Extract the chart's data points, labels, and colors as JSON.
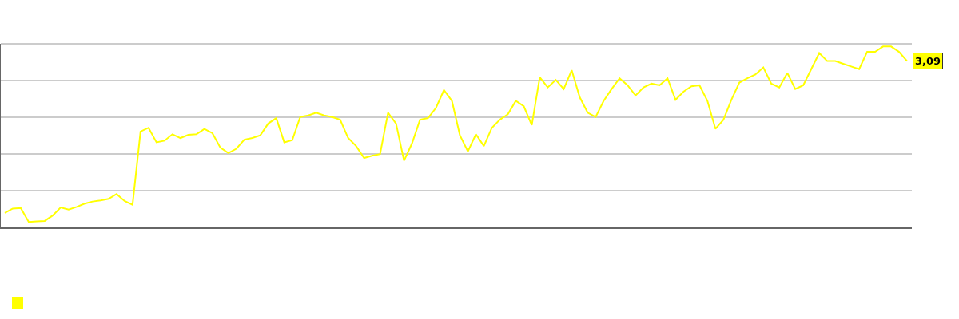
{
  "chart_data": {
    "type": "line",
    "categories": [
      null,
      null,
      null,
      null,
      null,
      null,
      null,
      null,
      null,
      null,
      null,
      null,
      null,
      null,
      null,
      null,
      null,
      null,
      null,
      null,
      null,
      null,
      null,
      null,
      null,
      null,
      null,
      null,
      null,
      null,
      null,
      null,
      null,
      null,
      null,
      null,
      null,
      null,
      null,
      null,
      null,
      null,
      null,
      null,
      null,
      null,
      null,
      null,
      null,
      null,
      null,
      null,
      null,
      null,
      null,
      null,
      null,
      null,
      null,
      null,
      null,
      null,
      null,
      null,
      null,
      null,
      null,
      null,
      null,
      null,
      null,
      null,
      null,
      null,
      null,
      null,
      null,
      null,
      null,
      null,
      null,
      null,
      null,
      null,
      null,
      null,
      null,
      null,
      null,
      null,
      null,
      null,
      null,
      null,
      null,
      null,
      null,
      null,
      null,
      null,
      null,
      null,
      null,
      null,
      null,
      null,
      null,
      null,
      null,
      null,
      null,
      null,
      null,
      null
    ],
    "series": [
      {
        "color": "#ffff00",
        "values": [
          0.27,
          0.35,
          0.36,
          0.1,
          0.11,
          0.12,
          0.22,
          0.37,
          0.33,
          0.38,
          0.44,
          0.48,
          0.5,
          0.53,
          0.62,
          0.49,
          0.42,
          1.78,
          1.85,
          1.58,
          1.61,
          1.73,
          1.66,
          1.72,
          1.73,
          1.83,
          1.75,
          1.48,
          1.38,
          1.46,
          1.63,
          1.66,
          1.71,
          1.93,
          2.03,
          1.58,
          1.62,
          2.05,
          2.08,
          2.13,
          2.08,
          2.05,
          2.0,
          1.66,
          1.51,
          1.29,
          1.33,
          1.36,
          2.13,
          1.93,
          1.24,
          1.56,
          2.0,
          2.03,
          2.22,
          2.55,
          2.35,
          1.71,
          1.41,
          1.73,
          1.51,
          1.85,
          2.0,
          2.1,
          2.35,
          2.25,
          1.9,
          2.79,
          2.6,
          2.74,
          2.57,
          2.92,
          2.42,
          2.13,
          2.05,
          2.35,
          2.57,
          2.77,
          2.64,
          2.45,
          2.6,
          2.67,
          2.64,
          2.77,
          2.37,
          2.52,
          2.62,
          2.64,
          2.35,
          1.83,
          2.0,
          2.37,
          2.69,
          2.77,
          2.84,
          2.97,
          2.67,
          2.6,
          2.87,
          2.57,
          2.64,
          2.94,
          3.24,
          3.09,
          3.09,
          3.04,
          2.99,
          2.94,
          3.26,
          3.26,
          3.36,
          3.36,
          3.26,
          3.09
        ],
        "value_labels": [
          null,
          null,
          null,
          null,
          null,
          null,
          null,
          null,
          null,
          null,
          null,
          null,
          null,
          null,
          null,
          null,
          null,
          null,
          null,
          null,
          null,
          null,
          null,
          null,
          null,
          null,
          null,
          null,
          null,
          null,
          null,
          null,
          null,
          null,
          null,
          null,
          null,
          null,
          null,
          null,
          null,
          null,
          null,
          null,
          null,
          null,
          null,
          null,
          null,
          null,
          null,
          null,
          null,
          null,
          null,
          null,
          null,
          null,
          null,
          null,
          null,
          null,
          null,
          null,
          null,
          null,
          null,
          null,
          null,
          null,
          null,
          null,
          null,
          null,
          null,
          null,
          null,
          null,
          null,
          null,
          null,
          null,
          null,
          null,
          null,
          null,
          null,
          null,
          null,
          null,
          null,
          null,
          null,
          null,
          null,
          null,
          null,
          null,
          null,
          null,
          null,
          null,
          null,
          null,
          null,
          null,
          null,
          null,
          null,
          null,
          null,
          null,
          null,
          "3,09"
        ]
      }
    ],
    "ylim": [
      0,
      3.41
    ],
    "yticks": [
      {
        "value": 0,
        "label": null
      },
      {
        "value": 0.68,
        "label": null
      },
      {
        "value": 1.36,
        "label": null
      },
      {
        "value": 2.05,
        "label": null
      },
      {
        "value": 2.73,
        "label": null
      }
    ],
    "grid": "y"
  }
}
